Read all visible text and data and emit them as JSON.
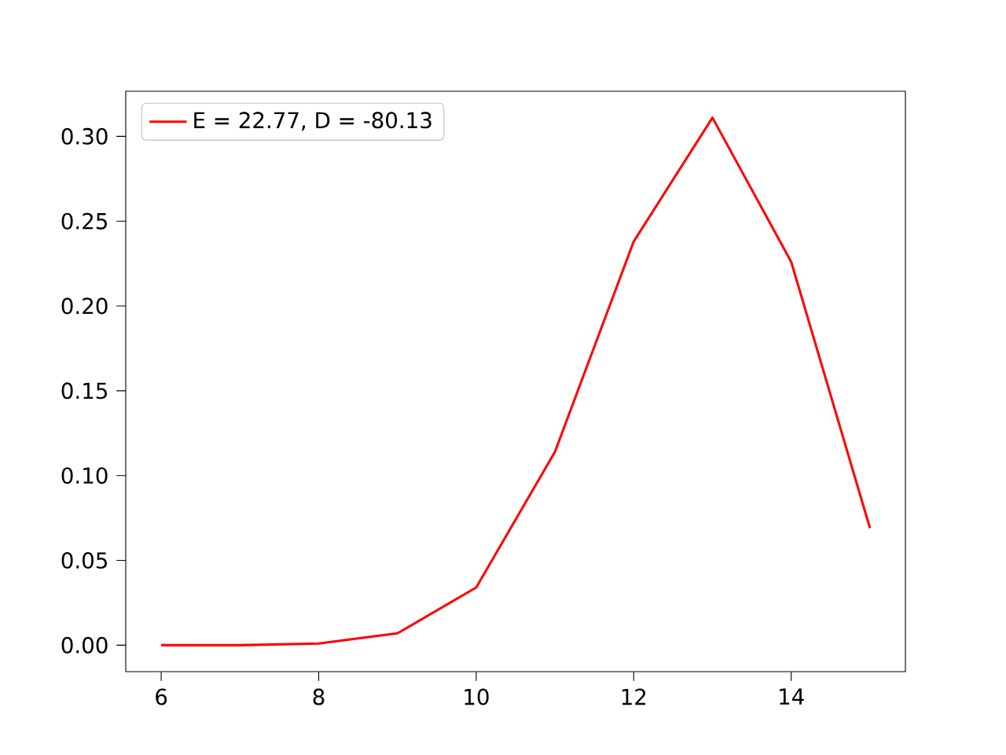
{
  "chart_data": {
    "type": "line",
    "x": [
      6,
      7,
      8,
      9,
      10,
      11,
      12,
      13,
      14,
      15
    ],
    "series": [
      {
        "name": "E = 22.77, D = -80.13",
        "color": "#ff0000",
        "values": [
          0,
          0,
          0.001,
          0.007,
          0.034,
          0.114,
          0.238,
          0.311,
          0.226,
          0.069
        ]
      }
    ],
    "xlim": [
      5.55,
      15.45
    ],
    "ylim": [
      -0.0156,
      0.3266
    ],
    "xticks": [
      6,
      8,
      10,
      12,
      14
    ],
    "yticks": [
      {
        "value": 0,
        "label": "0.00"
      },
      {
        "value": 0.05,
        "label": "0.05"
      },
      {
        "value": 0.1,
        "label": "0.10"
      },
      {
        "value": 0.15,
        "label": "0.15"
      },
      {
        "value": 0.2,
        "label": "0.20"
      },
      {
        "value": 0.25,
        "label": "0.25"
      },
      {
        "value": 0.3,
        "label": "0.30"
      }
    ],
    "legend": "top left",
    "marker": "none",
    "line_style": "solid"
  }
}
